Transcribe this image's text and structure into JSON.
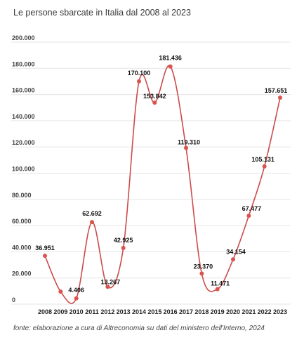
{
  "chart_data": {
    "type": "line",
    "title": "Le persone sbarcate in Italia dal 2008 al 2023",
    "source": "fonte: elaborazione a cura di Altreconomia su dati del ministero dell'Interno, 2024",
    "x": [
      "2008",
      "2009",
      "2010",
      "2011",
      "2012",
      "2013",
      "2014",
      "2015",
      "2016",
      "2017",
      "2018",
      "2019",
      "2020",
      "2021",
      "2022",
      "2023"
    ],
    "series": [
      {
        "values": [
          36951,
          9573,
          4406,
          62692,
          13267,
          42925,
          170100,
          153842,
          181436,
          119310,
          23370,
          11471,
          34154,
          67477,
          105131,
          157651
        ],
        "labels": [
          "36.951",
          "",
          "4.406",
          "62.692",
          "13.267",
          "42.925",
          "170.100",
          "153.842",
          "181.436",
          "119.310",
          "23.370",
          "11.471",
          "34.154",
          "67.477",
          "105.131",
          "157.651"
        ]
      }
    ],
    "y_ticks": [
      {
        "value": 0,
        "label": "0"
      },
      {
        "value": 20000,
        "label": "20.000"
      },
      {
        "value": 40000,
        "label": "40.000"
      },
      {
        "value": 60000,
        "label": "60.000"
      },
      {
        "value": 80000,
        "label": "80.000"
      },
      {
        "value": 100000,
        "label": "100.000"
      },
      {
        "value": 120000,
        "label": "120.000"
      },
      {
        "value": 140000,
        "label": "140.000"
      },
      {
        "value": 160000,
        "label": "160.000"
      },
      {
        "value": 180000,
        "label": "180.000"
      },
      {
        "value": 200000,
        "label": "200.000"
      }
    ],
    "ylim": [
      0,
      200000
    ],
    "grid": true,
    "legend": "none",
    "colors": {
      "line": "#cc4b4b",
      "point": "#d9534f",
      "grid": "#e6e6e6"
    }
  }
}
